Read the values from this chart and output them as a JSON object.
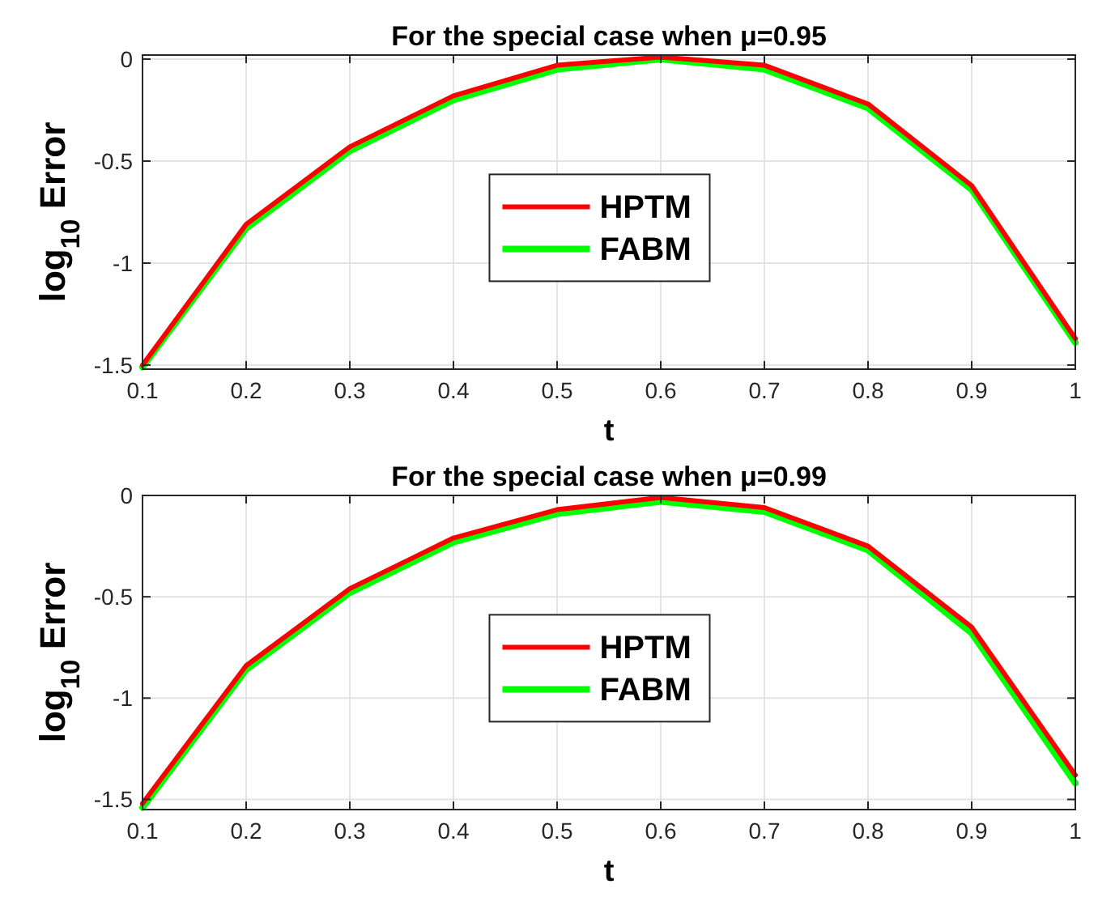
{
  "chart_data": [
    {
      "type": "line",
      "title": "For the special case when μ=0.95",
      "xlabel": "t",
      "ylabel": "log$_{10}$ Error",
      "x": [
        0.1,
        0.2,
        0.3,
        0.4,
        0.5,
        0.6,
        0.7,
        0.8,
        0.9,
        1
      ],
      "xlim": [
        0.1,
        1
      ],
      "xticks": [
        0.1,
        0.2,
        0.3,
        0.4,
        0.5,
        0.6,
        0.7,
        0.8,
        0.9,
        1
      ],
      "ylim": [
        -1.52,
        0.02
      ],
      "yticks": [
        -1.5,
        -1,
        -0.5,
        0
      ],
      "grid": true,
      "legend": "center",
      "marker": "none",
      "line_style": "solid",
      "series": [
        {
          "name": "HPTM",
          "color": "#ff0000",
          "values": [
            -1.5,
            -0.81,
            -0.43,
            -0.18,
            -0.03,
            0.01,
            -0.03,
            -0.22,
            -0.62,
            -1.37
          ]
        },
        {
          "name": "FABM",
          "color": "#00ff00",
          "values": [
            -1.51,
            -0.83,
            -0.45,
            -0.2,
            -0.05,
            0,
            -0.05,
            -0.24,
            -0.64,
            -1.39
          ]
        }
      ]
    },
    {
      "type": "line",
      "title": "For the special case when μ=0.99",
      "xlabel": "t",
      "ylabel": "log$_{10}$ Error",
      "x": [
        0.1,
        0.2,
        0.3,
        0.4,
        0.5,
        0.6,
        0.7,
        0.8,
        0.9,
        1
      ],
      "xlim": [
        0.1,
        1
      ],
      "xticks": [
        0.1,
        0.2,
        0.3,
        0.4,
        0.5,
        0.6,
        0.7,
        0.8,
        0.9,
        1
      ],
      "ylim": [
        -1.55,
        0
      ],
      "yticks": [
        -1.5,
        -1,
        -0.5,
        0
      ],
      "grid": true,
      "legend": "center",
      "marker": "none",
      "line_style": "solid",
      "series": [
        {
          "name": "HPTM",
          "color": "#ff0000",
          "values": [
            -1.52,
            -0.84,
            -0.46,
            -0.21,
            -0.07,
            -0.01,
            -0.06,
            -0.25,
            -0.65,
            -1.38
          ]
        },
        {
          "name": "FABM",
          "color": "#00ff00",
          "values": [
            -1.54,
            -0.86,
            -0.48,
            -0.23,
            -0.09,
            -0.03,
            -0.08,
            -0.27,
            -0.68,
            -1.42
          ]
        }
      ]
    }
  ]
}
